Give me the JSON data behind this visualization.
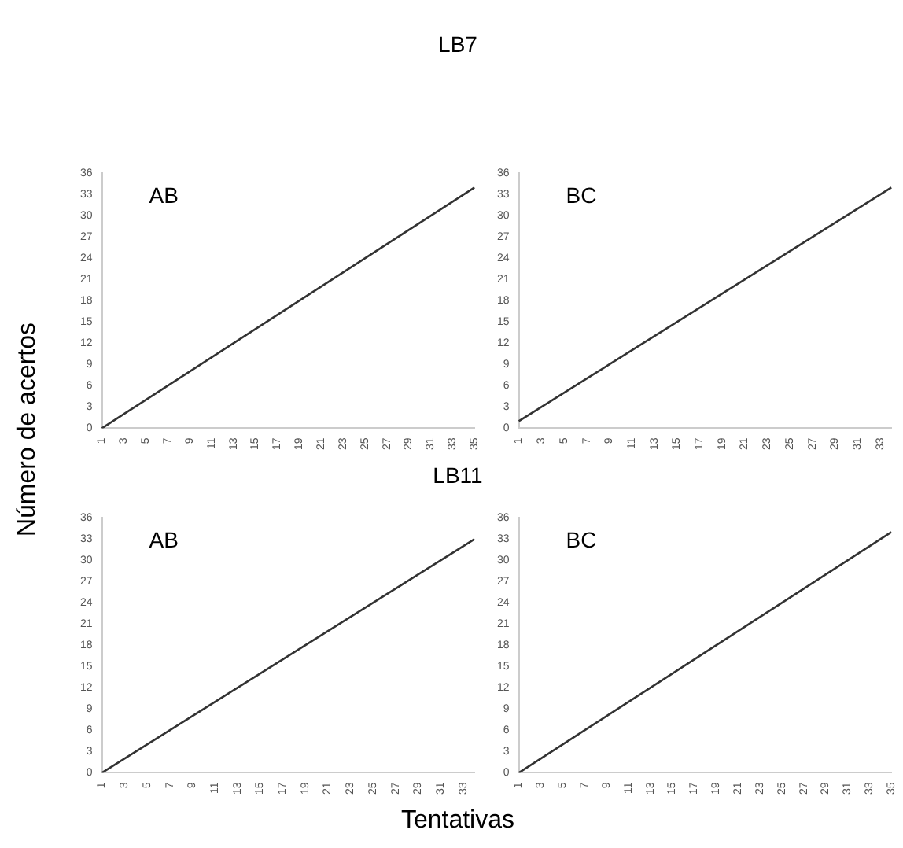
{
  "chart_data": [
    {
      "type": "line",
      "title": "LB7",
      "subtitle": "AB",
      "ylabel": "Número de acertos",
      "categories": [
        "1",
        null,
        "3",
        null,
        "5",
        null,
        "7",
        null,
        "9",
        null,
        "11",
        null,
        "13",
        null,
        "15",
        null,
        "17",
        null,
        "19",
        null,
        "21",
        null,
        "23",
        null,
        "25",
        null,
        "27",
        null,
        "29",
        null,
        "31",
        null,
        "33",
        null,
        "35"
      ],
      "series": [
        {
          "color": "#333333",
          "values": [
            0,
            1,
            2,
            3,
            4,
            5,
            6,
            7,
            8,
            9,
            10,
            11,
            12,
            13,
            14,
            15,
            16,
            17,
            18,
            19,
            20,
            21,
            22,
            23,
            24,
            25,
            26,
            27,
            28,
            29,
            30,
            31,
            32,
            33,
            34
          ]
        }
      ],
      "ylim": [
        0,
        36
      ],
      "yticks": [
        0,
        3,
        6,
        9,
        12,
        15,
        18,
        21,
        24,
        27,
        30,
        33,
        36
      ],
      "grid": false,
      "legend": false,
      "marker": "none",
      "line_style": "solid"
    },
    {
      "type": "line",
      "subtitle": "BC",
      "categories": [
        "1",
        null,
        "3",
        null,
        "5",
        null,
        "7",
        null,
        "9",
        null,
        "11",
        null,
        "13",
        null,
        "15",
        null,
        "17",
        null,
        "19",
        null,
        "21",
        null,
        "23",
        null,
        "25",
        null,
        "27",
        null,
        "29",
        null,
        "31",
        null,
        "33",
        null
      ],
      "series": [
        {
          "color": "#333333",
          "values": [
            1,
            2,
            3,
            4,
            5,
            6,
            7,
            8,
            9,
            10,
            11,
            12,
            13,
            14,
            15,
            16,
            17,
            18,
            19,
            20,
            21,
            22,
            23,
            24,
            25,
            26,
            27,
            28,
            29,
            30,
            31,
            32,
            33,
            34
          ]
        }
      ],
      "ylim": [
        0,
        36
      ],
      "yticks": [
        0,
        3,
        6,
        9,
        12,
        15,
        18,
        21,
        24,
        27,
        30,
        33,
        36
      ],
      "grid": false,
      "legend": false,
      "marker": "none",
      "line_style": "solid"
    },
    {
      "type": "line",
      "title": "LB11",
      "subtitle": "AB",
      "xlabel": "Tentativas",
      "categories": [
        "1",
        null,
        "3",
        null,
        "5",
        null,
        "7",
        null,
        "9",
        null,
        "11",
        null,
        "13",
        null,
        "15",
        null,
        "17",
        null,
        "19",
        null,
        "21",
        null,
        "23",
        null,
        "25",
        null,
        "27",
        null,
        "29",
        null,
        "31",
        null,
        "33",
        null
      ],
      "series": [
        {
          "color": "#333333",
          "values": [
            0,
            1,
            2,
            3,
            4,
            5,
            6,
            7,
            8,
            9,
            10,
            11,
            12,
            13,
            14,
            15,
            16,
            17,
            18,
            19,
            20,
            21,
            22,
            23,
            24,
            25,
            26,
            27,
            28,
            29,
            30,
            31,
            32,
            33
          ]
        }
      ],
      "ylim": [
        0,
        36
      ],
      "yticks": [
        0,
        3,
        6,
        9,
        12,
        15,
        18,
        21,
        24,
        27,
        30,
        33,
        36
      ],
      "grid": false,
      "legend": false,
      "marker": "none",
      "line_style": "solid"
    },
    {
      "type": "line",
      "subtitle": "BC",
      "categories": [
        "1",
        null,
        "3",
        null,
        "5",
        null,
        "7",
        null,
        "9",
        null,
        "11",
        null,
        "13",
        null,
        "15",
        null,
        "17",
        null,
        "19",
        null,
        "21",
        null,
        "23",
        null,
        "25",
        null,
        "27",
        null,
        "29",
        null,
        "31",
        null,
        "33",
        null,
        "35"
      ],
      "series": [
        {
          "color": "#333333",
          "values": [
            0,
            1,
            2,
            3,
            4,
            5,
            6,
            7,
            8,
            9,
            10,
            11,
            12,
            13,
            14,
            15,
            16,
            17,
            18,
            19,
            20,
            21,
            22,
            23,
            24,
            25,
            26,
            27,
            28,
            29,
            30,
            31,
            32,
            33,
            34
          ]
        }
      ],
      "ylim": [
        0,
        36
      ],
      "yticks": [
        0,
        3,
        6,
        9,
        12,
        15,
        18,
        21,
        24,
        27,
        30,
        33,
        36
      ],
      "grid": false,
      "legend": false,
      "marker": "none",
      "line_style": "solid"
    }
  ]
}
